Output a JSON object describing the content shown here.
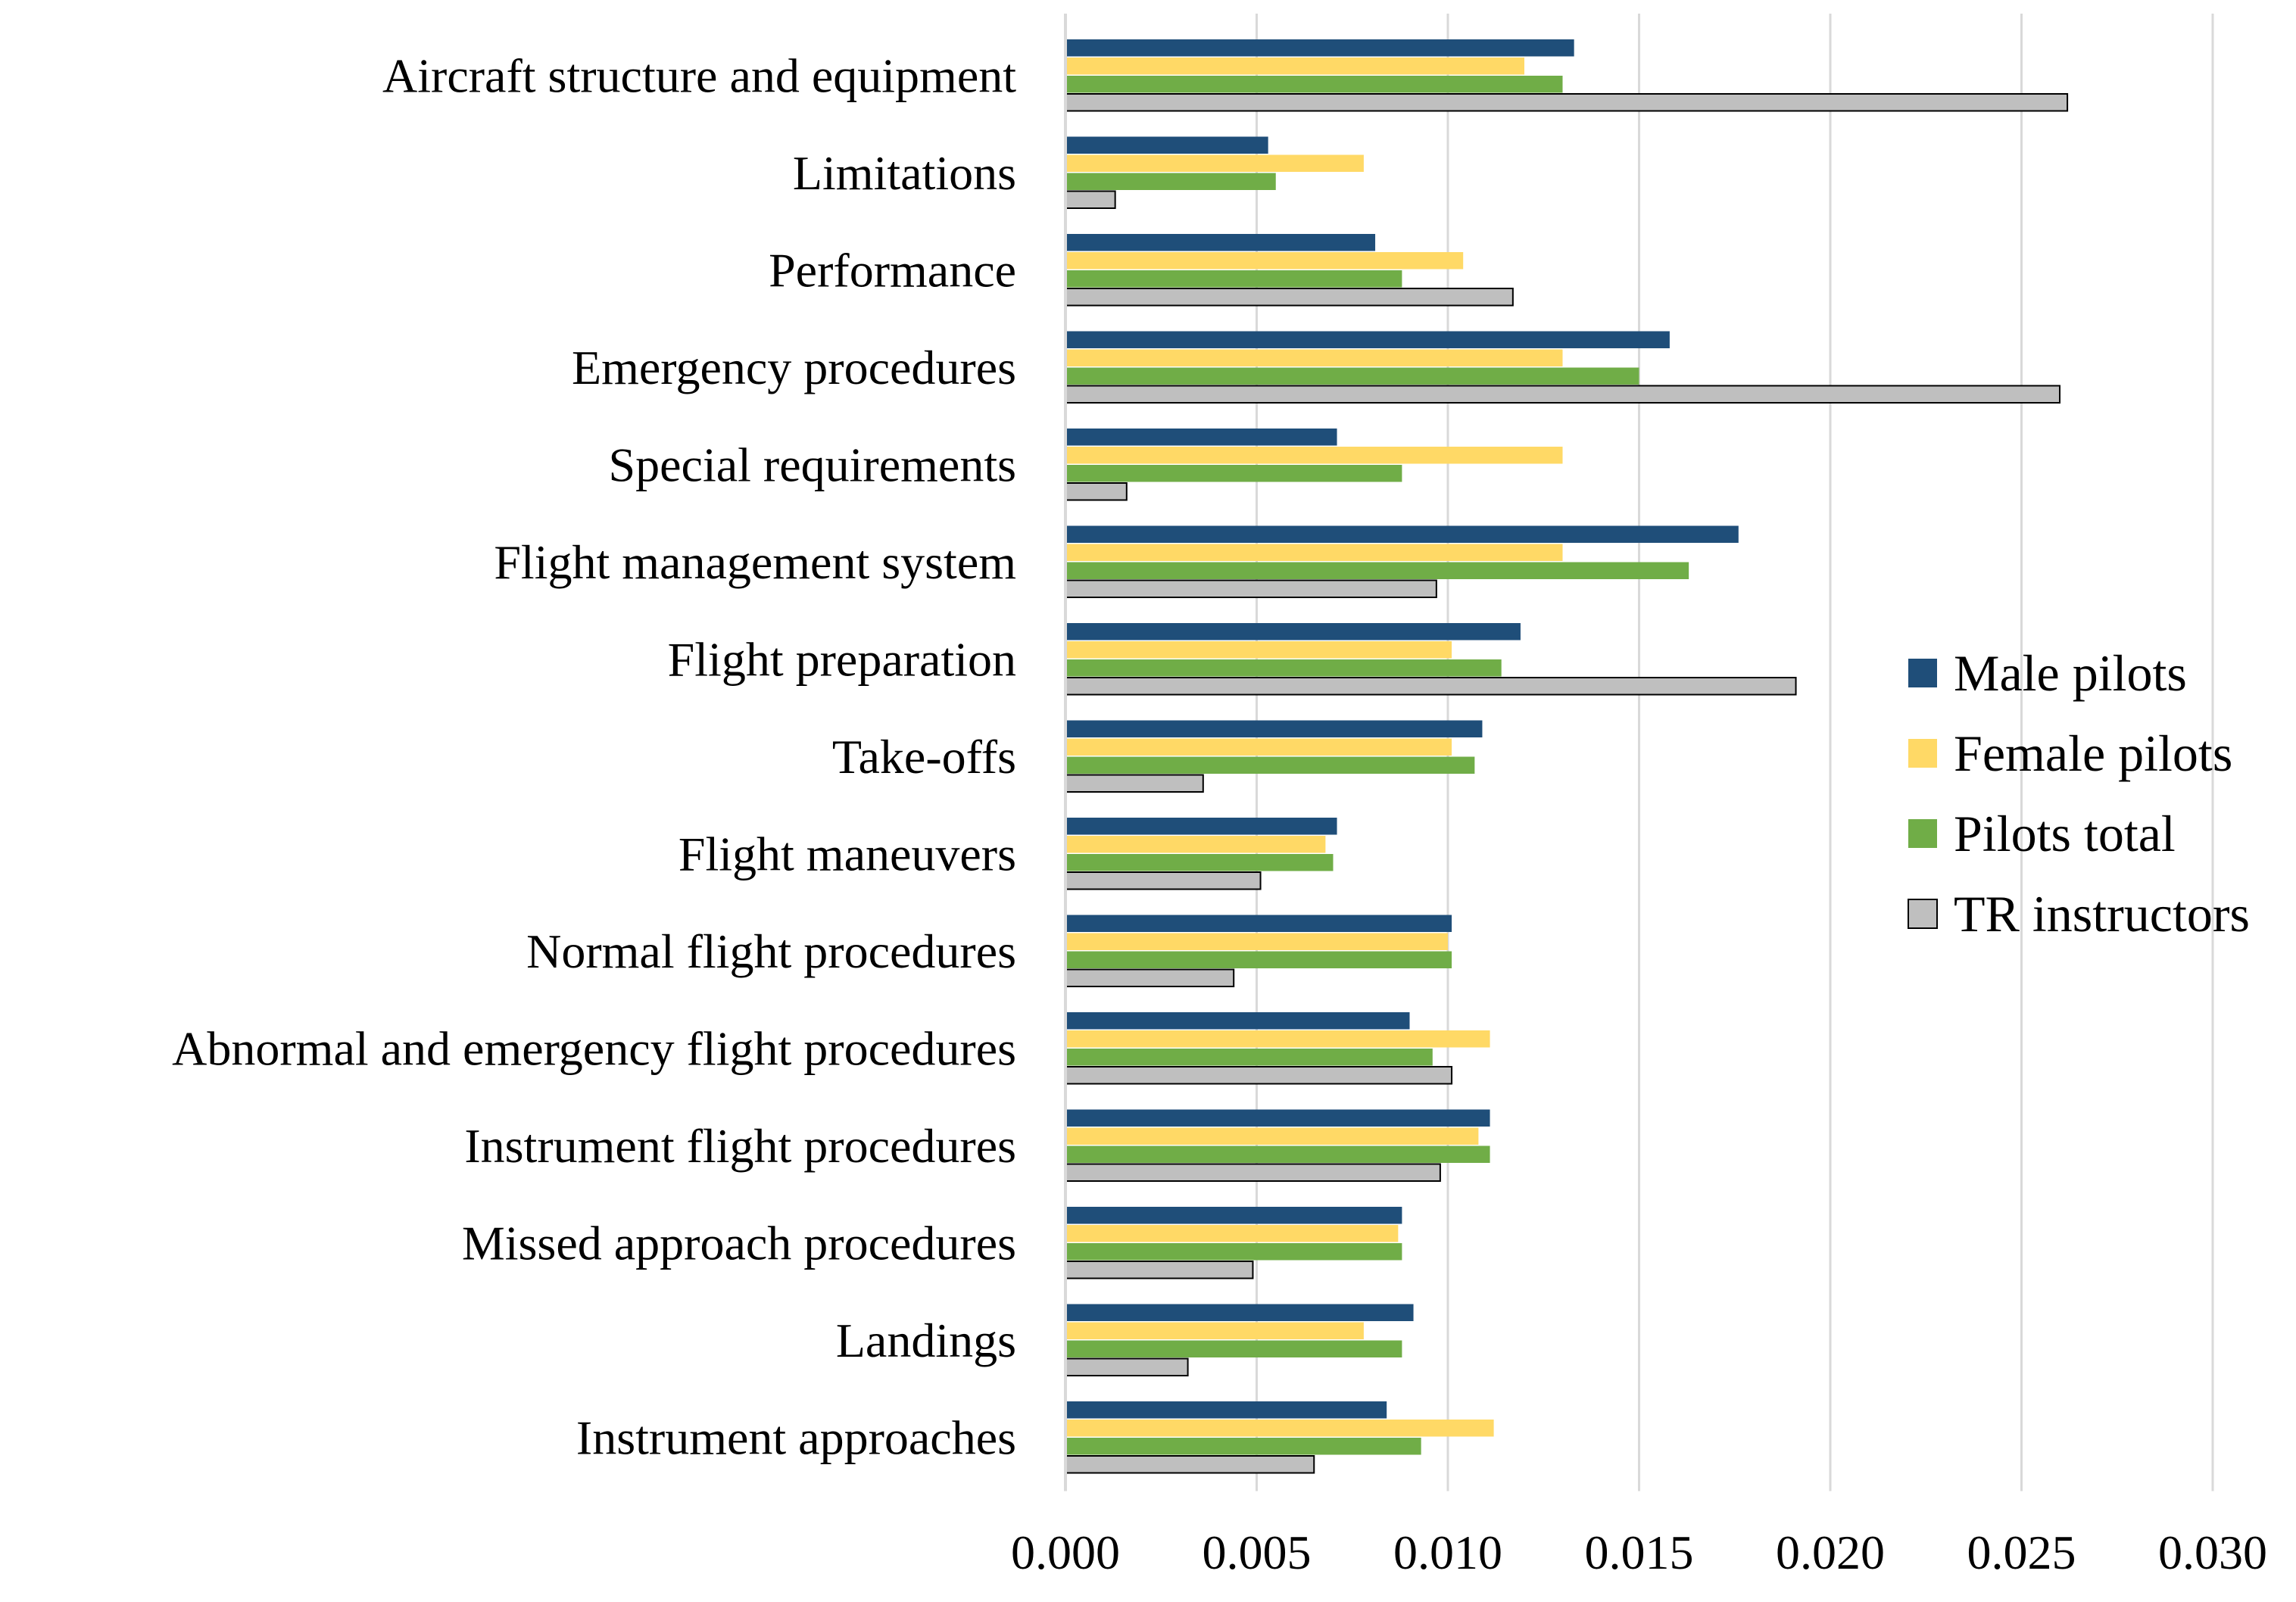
{
  "chart_data": {
    "type": "bar",
    "orientation": "horizontal",
    "title": "",
    "xlabel": "",
    "ylabel": "",
    "xlim": [
      0,
      0.03
    ],
    "x_ticks": [
      "0.000",
      "0.005",
      "0.010",
      "0.015",
      "0.020",
      "0.025",
      "0.030"
    ],
    "grid": true,
    "legend_position": "right",
    "categories": [
      "Aircraft structure and equipment",
      "Limitations",
      "Performance",
      "Emergency procedures",
      "Special requirements",
      "Flight management system",
      "Flight preparation",
      "Take-offs",
      "Flight  maneuvers",
      "Normal flight procedures",
      "Abnormal and emergency flight procedures",
      "Instrument flight procedures",
      "Missed  approach procedures",
      "Landings",
      "Instrument approaches"
    ],
    "series": [
      {
        "name": "Male pilots",
        "color": "#1F4E79",
        "values": [
          0.0133,
          0.0053,
          0.0081,
          0.0158,
          0.0071,
          0.0176,
          0.0119,
          0.0109,
          0.0071,
          0.0101,
          0.009,
          0.0111,
          0.0088,
          0.0091,
          0.0084
        ]
      },
      {
        "name": "Female pilots",
        "color": "#FFD966",
        "values": [
          0.012,
          0.0078,
          0.0104,
          0.013,
          0.013,
          0.013,
          0.0101,
          0.0101,
          0.0068,
          0.01,
          0.0111,
          0.0108,
          0.0087,
          0.0078,
          0.0112
        ]
      },
      {
        "name": "Pilots total",
        "color": "#70AD47",
        "values": [
          0.013,
          0.0055,
          0.0088,
          0.015,
          0.0088,
          0.0163,
          0.0114,
          0.0107,
          0.007,
          0.0101,
          0.0096,
          0.0111,
          0.0088,
          0.0088,
          0.0093
        ]
      },
      {
        "name": "TR instructors",
        "color": "#BFBFBF",
        "values": [
          0.0262,
          0.0013,
          0.0117,
          0.026,
          0.0016,
          0.0097,
          0.0191,
          0.0036,
          0.0051,
          0.0044,
          0.0101,
          0.0098,
          0.0049,
          0.0032,
          0.0065
        ]
      }
    ]
  }
}
